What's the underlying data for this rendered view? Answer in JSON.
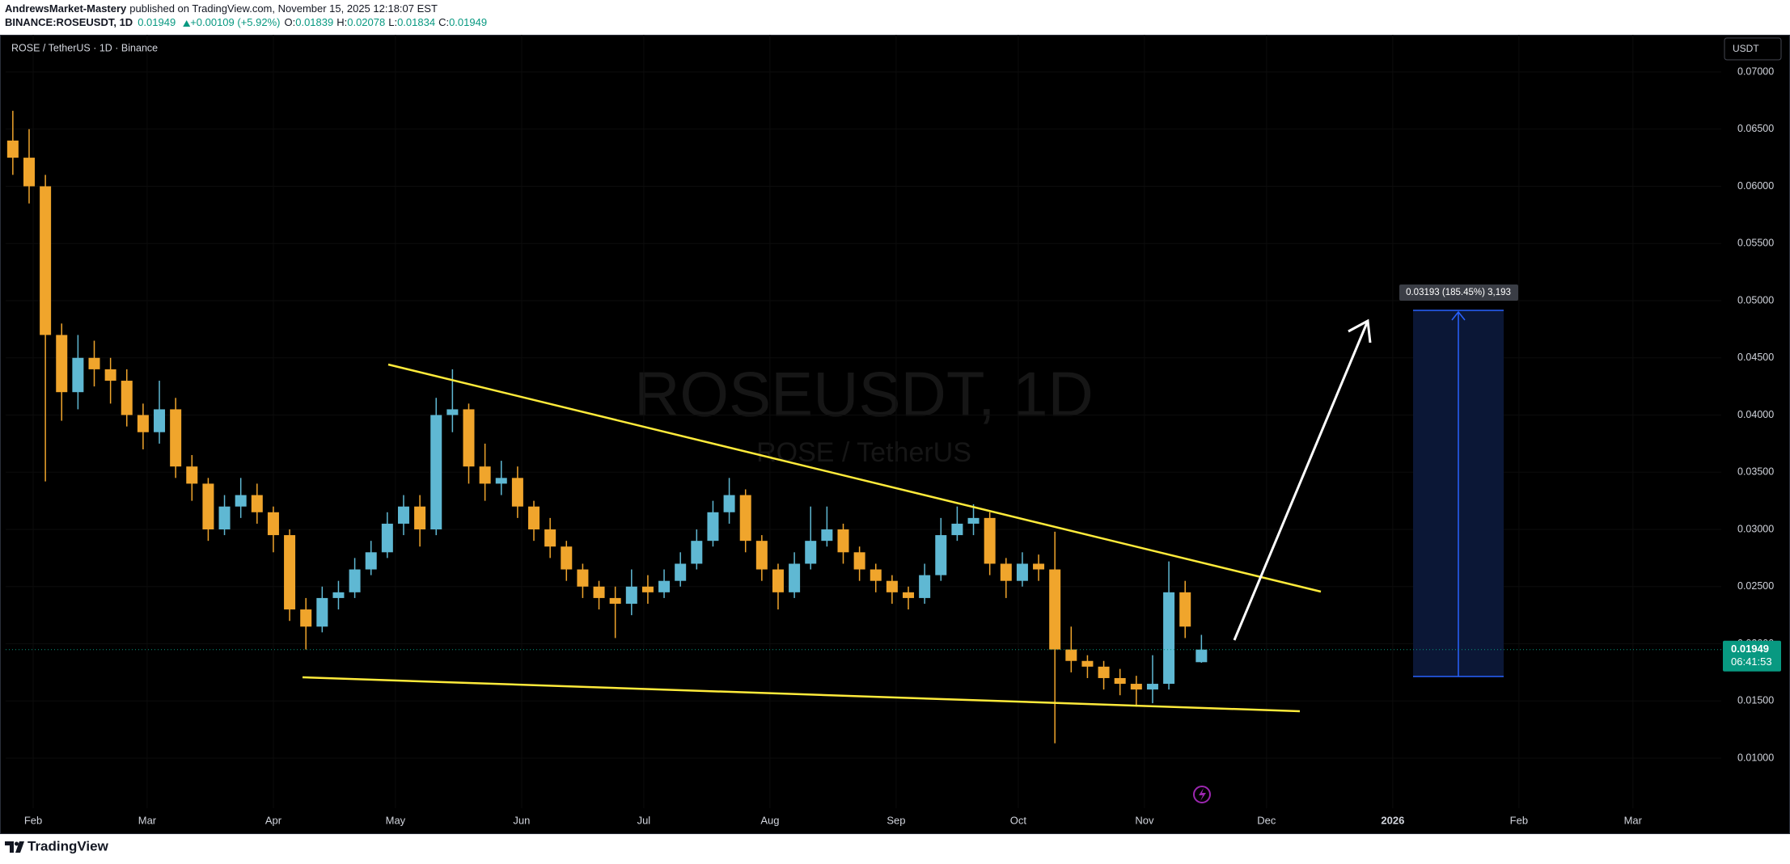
{
  "header": {
    "author": "AndrewsMarket-Mastery",
    "published": "published on TradingView.com, November 15, 2025 12:18:07 EST",
    "symbol": "BINANCE:ROSEUSDT, 1D",
    "change": "+0.00109 (+5.92%)",
    "ohlc_labels": [
      "O:",
      "H:",
      "L:",
      "C:"
    ]
  },
  "chart_data": {
    "type": "candlestick",
    "title": "ROSE / TetherUS · 1D · Binance",
    "watermark": "ROSEUSDT, 1D",
    "watermark_sub": "ROSE / TetherUS",
    "currency_button": "USDT",
    "countdown": "06:41:53",
    "measure_label": "0.03193 (185.45%) 3,193",
    "up_color": "#5fb8d3",
    "down_color": "#f0a52c",
    "xlim": [
      -6.76,
      414.7
    ],
    "ylim": [
      0.00562,
      0.07325
    ],
    "xticks": [
      {
        "value": 0,
        "label": "Feb"
      },
      {
        "value": 28,
        "label": "Mar"
      },
      {
        "value": 59,
        "label": "Apr"
      },
      {
        "value": 89,
        "label": "May"
      },
      {
        "value": 120,
        "label": "Jun"
      },
      {
        "value": 150,
        "label": "Jul"
      },
      {
        "value": 181,
        "label": "Aug"
      },
      {
        "value": 212,
        "label": "Sep"
      },
      {
        "value": 242,
        "label": "Oct"
      },
      {
        "value": 273,
        "label": "Nov"
      },
      {
        "value": 303,
        "label": "Dec"
      },
      {
        "value": 334,
        "label": "2026"
      },
      {
        "value": 365,
        "label": "Feb"
      },
      {
        "value": 393,
        "label": "Mar"
      }
    ],
    "yticks": [
      {
        "value": 0.01,
        "label": "0.01000"
      },
      {
        "value": 0.015,
        "label": "0.01500"
      },
      {
        "value": 0.02,
        "label": "0.02000"
      },
      {
        "value": 0.025,
        "label": "0.02500"
      },
      {
        "value": 0.03,
        "label": "0.03000"
      },
      {
        "value": 0.035,
        "label": "0.03500"
      },
      {
        "value": 0.04,
        "label": "0.04000"
      },
      {
        "value": 0.045,
        "label": "0.04500"
      },
      {
        "value": 0.05,
        "label": "0.05000"
      },
      {
        "value": 0.055,
        "label": "0.05500"
      },
      {
        "value": 0.06,
        "label": "0.06000"
      },
      {
        "value": 0.065,
        "label": "0.06500"
      },
      {
        "value": 0.07,
        "label": "0.07000"
      }
    ],
    "series": [
      {
        "name": "ROSEUSDT",
        "x": [
          -5,
          -1,
          3,
          7,
          11,
          15,
          19,
          23,
          27,
          31,
          35,
          39,
          43,
          47,
          51,
          55,
          59,
          63,
          67,
          71,
          75,
          79,
          83,
          87,
          91,
          95,
          99,
          103,
          107,
          111,
          115,
          119,
          123,
          127,
          131,
          135,
          139,
          143,
          147,
          151,
          155,
          159,
          163,
          167,
          171,
          175,
          179,
          183,
          187,
          191,
          195,
          199,
          203,
          207,
          211,
          215,
          219,
          223,
          227,
          231,
          235,
          239,
          243,
          247,
          251,
          255,
          259,
          263,
          267,
          271,
          275,
          279,
          283,
          287
        ],
        "open": [
          0.064,
          0.0625,
          0.06,
          0.047,
          0.042,
          0.045,
          0.044,
          0.043,
          0.04,
          0.0385,
          0.0405,
          0.0355,
          0.034,
          0.03,
          0.032,
          0.033,
          0.0315,
          0.0295,
          0.023,
          0.0215,
          0.024,
          0.0245,
          0.0265,
          0.028,
          0.0305,
          0.032,
          0.03,
          0.04,
          0.0405,
          0.0355,
          0.034,
          0.0345,
          0.032,
          0.03,
          0.0285,
          0.0265,
          0.025,
          0.024,
          0.0235,
          0.025,
          0.0245,
          0.0255,
          0.027,
          0.029,
          0.0315,
          0.033,
          0.029,
          0.0265,
          0.0245,
          0.027,
          0.029,
          0.03,
          0.028,
          0.0265,
          0.0255,
          0.0245,
          0.024,
          0.026,
          0.0295,
          0.0305,
          0.031,
          0.027,
          0.0255,
          0.027,
          0.0265,
          0.0195,
          0.0185,
          0.018,
          0.017,
          0.0165,
          0.016,
          0.0165,
          0.0245,
          0.01839
        ],
        "high": [
          0.0666,
          0.065,
          0.061,
          0.048,
          0.047,
          0.0465,
          0.045,
          0.044,
          0.041,
          0.043,
          0.0415,
          0.0365,
          0.0345,
          0.033,
          0.0345,
          0.034,
          0.032,
          0.03,
          0.024,
          0.025,
          0.0255,
          0.0275,
          0.029,
          0.0315,
          0.033,
          0.033,
          0.0415,
          0.044,
          0.041,
          0.0375,
          0.036,
          0.0355,
          0.0325,
          0.031,
          0.029,
          0.027,
          0.0255,
          0.025,
          0.0265,
          0.026,
          0.0265,
          0.028,
          0.03,
          0.0325,
          0.0345,
          0.0335,
          0.0295,
          0.027,
          0.028,
          0.032,
          0.032,
          0.0305,
          0.0285,
          0.027,
          0.026,
          0.025,
          0.027,
          0.031,
          0.032,
          0.0322,
          0.0315,
          0.0275,
          0.028,
          0.0278,
          0.0298,
          0.0215,
          0.019,
          0.0185,
          0.0178,
          0.0172,
          0.019,
          0.0272,
          0.0255,
          0.02078
        ],
        "low": [
          0.061,
          0.0585,
          0.0342,
          0.0395,
          0.0405,
          0.0425,
          0.041,
          0.039,
          0.037,
          0.0375,
          0.0345,
          0.0325,
          0.029,
          0.0295,
          0.031,
          0.0305,
          0.028,
          0.022,
          0.0195,
          0.021,
          0.023,
          0.024,
          0.026,
          0.0275,
          0.0295,
          0.0285,
          0.0295,
          0.0385,
          0.034,
          0.0325,
          0.033,
          0.031,
          0.029,
          0.0275,
          0.0255,
          0.024,
          0.023,
          0.0205,
          0.0225,
          0.0235,
          0.024,
          0.025,
          0.0265,
          0.0285,
          0.0305,
          0.028,
          0.0255,
          0.023,
          0.024,
          0.0265,
          0.0285,
          0.027,
          0.0255,
          0.0245,
          0.0235,
          0.023,
          0.0235,
          0.0255,
          0.029,
          0.0295,
          0.026,
          0.024,
          0.025,
          0.0255,
          0.0113,
          0.0175,
          0.017,
          0.016,
          0.0155,
          0.0145,
          0.0148,
          0.016,
          0.0205,
          0.01834
        ],
        "close": [
          0.0625,
          0.06,
          0.047,
          0.042,
          0.045,
          0.044,
          0.043,
          0.04,
          0.0385,
          0.0405,
          0.0355,
          0.034,
          0.03,
          0.032,
          0.033,
          0.0315,
          0.0295,
          0.023,
          0.0215,
          0.024,
          0.0245,
          0.0265,
          0.028,
          0.0305,
          0.032,
          0.03,
          0.04,
          0.0405,
          0.0355,
          0.034,
          0.0345,
          0.032,
          0.03,
          0.0285,
          0.0265,
          0.025,
          0.024,
          0.0235,
          0.025,
          0.0245,
          0.0255,
          0.027,
          0.029,
          0.0315,
          0.033,
          0.029,
          0.0265,
          0.0245,
          0.027,
          0.029,
          0.03,
          0.028,
          0.0265,
          0.0255,
          0.0245,
          0.024,
          0.026,
          0.0295,
          0.0305,
          0.031,
          0.027,
          0.0255,
          0.027,
          0.0265,
          0.0195,
          0.0185,
          0.018,
          0.017,
          0.0165,
          0.016,
          0.0165,
          0.0245,
          0.0215,
          0.01949
        ]
      }
    ],
    "brand": "TradingView"
  }
}
